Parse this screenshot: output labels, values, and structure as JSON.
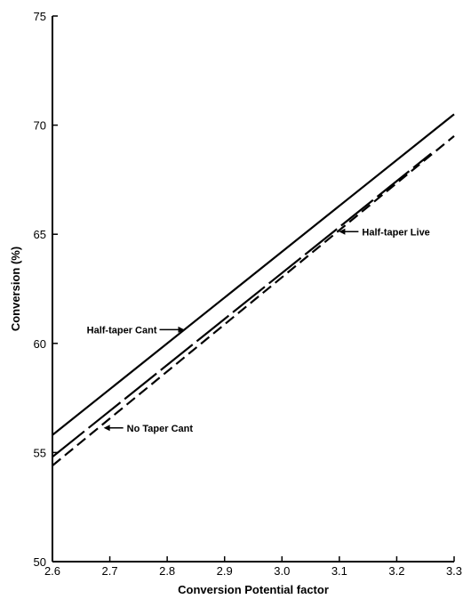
{
  "chart_data": {
    "type": "line",
    "title": "",
    "xlabel": "Conversion  Potential  factor",
    "ylabel": "Conversion (%)",
    "xlim": [
      2.6,
      3.3
    ],
    "ylim": [
      50,
      75
    ],
    "xticks": [
      "2.6",
      "2.7",
      "2.8",
      "2.9",
      "3.0",
      "3.1",
      "3.2",
      "3.3"
    ],
    "yticks": [
      "50",
      "55",
      "60",
      "65",
      "70",
      "75"
    ],
    "grid": false,
    "legend": "none",
    "series": [
      {
        "name": "Half-taper Cant",
        "style": "solid",
        "color": "#000000",
        "x": [
          2.6,
          3.3
        ],
        "y": [
          55.8,
          70.5
        ]
      },
      {
        "name": "Half-taper Live",
        "style": "long-dash",
        "color": "#000000",
        "x": [
          2.6,
          3.26
        ],
        "y": [
          54.8,
          68.7
        ]
      },
      {
        "name": "No Taper Cant",
        "style": "short-dash",
        "color": "#000000",
        "x": [
          2.6,
          3.3
        ],
        "y": [
          54.4,
          69.5
        ]
      }
    ],
    "annotations": [
      {
        "text": "Half-taper Cant",
        "series": "Half-taper Cant",
        "at_x": 2.83
      },
      {
        "text": "Half-taper Live",
        "series": "Half-taper Live",
        "at_x": 3.09
      },
      {
        "text": "No Taper Cant",
        "series": "No Taper Cant",
        "at_x": 2.68
      }
    ]
  }
}
